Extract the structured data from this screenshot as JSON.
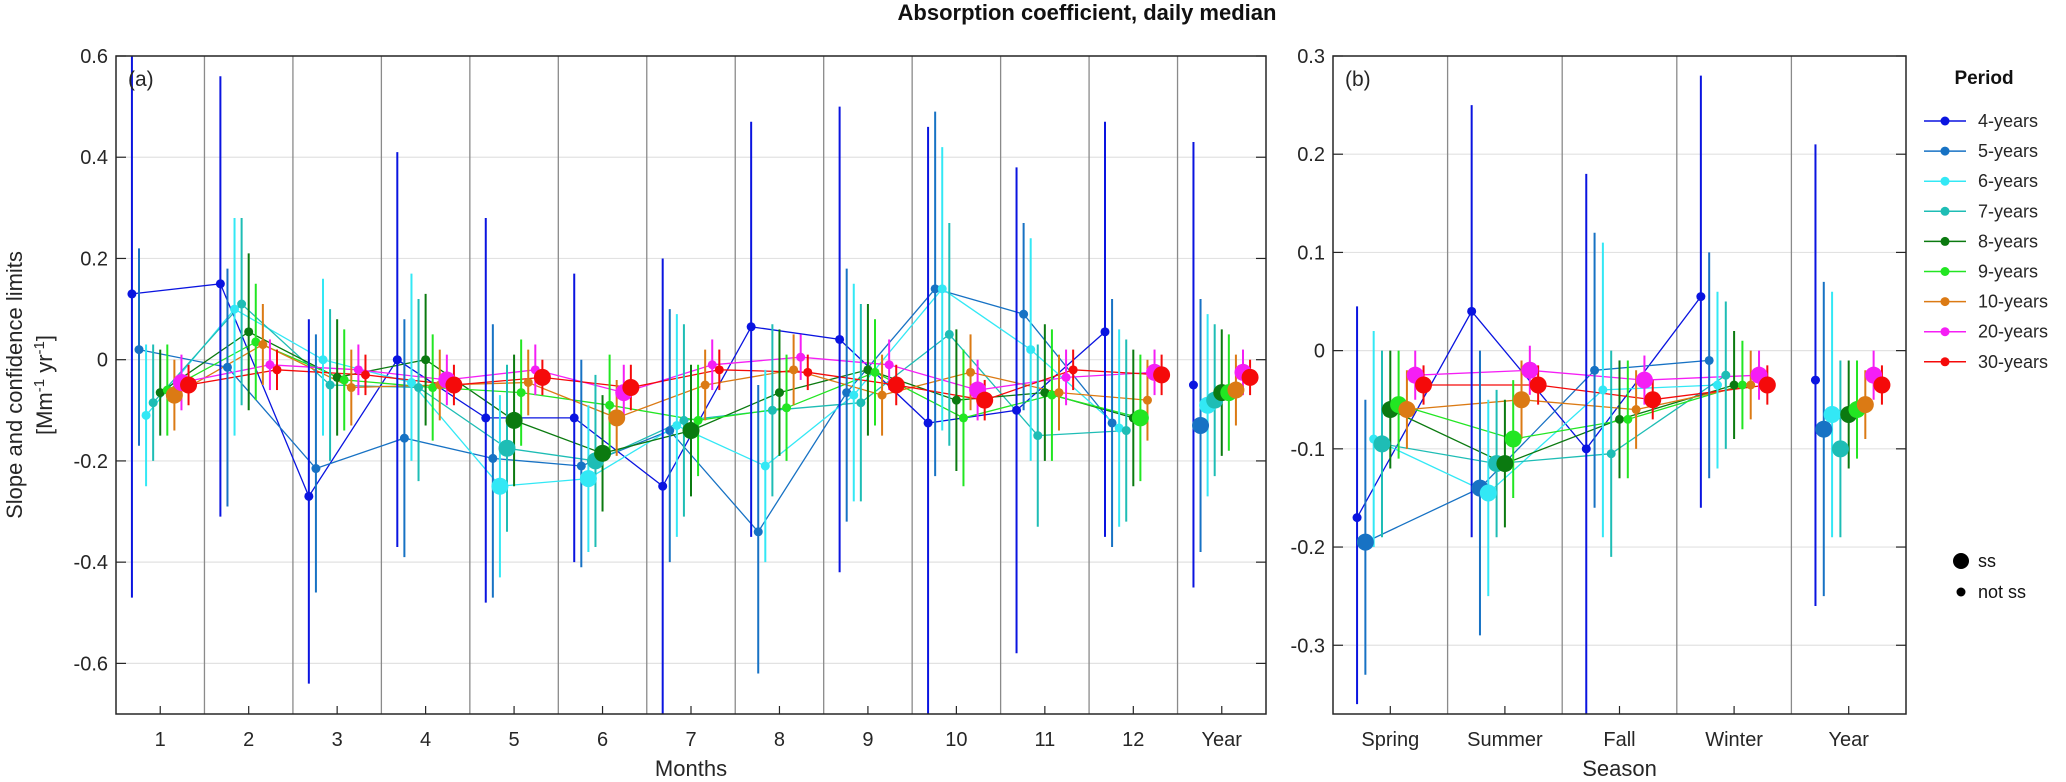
{
  "figure": {
    "title": "Absorption coefficient, daily median"
  },
  "legend": {
    "title": "Period",
    "size_ss_label": "ss",
    "size_not_ss_label": "not ss"
  },
  "chart_data": [
    {
      "id": "a",
      "panel_label": "(a)",
      "type": "scatter",
      "xlabel": "Months",
      "ylabel_main": "Slope and confidence limits",
      "ylabel_units": "[Mm-1 yr-1]",
      "ylim": [
        -0.7,
        0.6
      ],
      "yticks": [
        -0.6,
        -0.4,
        -0.2,
        0,
        0.2,
        0.4,
        0.6
      ],
      "ytick_labels": [
        "-0.6",
        "-0.4",
        "-0.2",
        "0",
        "0.2",
        "0.4",
        "0.6"
      ],
      "categories": [
        "1",
        "2",
        "3",
        "4",
        "5",
        "6",
        "7",
        "8",
        "9",
        "10",
        "11",
        "12",
        "Year"
      ],
      "grid": "horizontal",
      "series": [
        {
          "name": "4-years",
          "color": "#0a14e0",
          "y": [
            0.13,
            0.15,
            -0.27,
            0.0,
            -0.115,
            -0.115,
            -0.25,
            0.065,
            0.04,
            -0.125,
            -0.1,
            0.055,
            -0.05
          ],
          "lo": [
            -0.47,
            -0.31,
            -0.64,
            -0.37,
            -0.48,
            -0.4,
            -0.7,
            -0.35,
            -0.42,
            -0.7,
            -0.58,
            -0.35,
            -0.45
          ],
          "hi": [
            0.6,
            0.56,
            0.08,
            0.41,
            0.28,
            0.17,
            0.2,
            0.47,
            0.5,
            0.46,
            0.38,
            0.47,
            0.43
          ],
          "ss": [
            false,
            false,
            false,
            false,
            false,
            false,
            false,
            false,
            false,
            false,
            false,
            false,
            false
          ]
        },
        {
          "name": "5-years",
          "color": "#1772c4",
          "y": [
            0.02,
            -0.015,
            -0.215,
            -0.155,
            -0.195,
            -0.21,
            -0.14,
            -0.34,
            -0.065,
            0.14,
            0.09,
            -0.125,
            -0.13
          ],
          "lo": [
            -0.17,
            -0.29,
            -0.46,
            -0.39,
            -0.47,
            -0.41,
            -0.4,
            -0.62,
            -0.32,
            -0.23,
            -0.1,
            -0.37,
            -0.38
          ],
          "hi": [
            0.22,
            0.18,
            0.05,
            0.08,
            0.07,
            0.0,
            0.1,
            -0.05,
            0.18,
            0.49,
            0.27,
            0.12,
            0.12
          ],
          "ss": [
            false,
            false,
            false,
            false,
            false,
            false,
            false,
            false,
            false,
            false,
            false,
            false,
            true
          ]
        },
        {
          "name": "6-years",
          "color": "#33e8f5",
          "y": [
            -0.11,
            0.1,
            0.0,
            -0.045,
            -0.25,
            -0.235,
            -0.13,
            -0.21,
            -0.07,
            0.14,
            0.02,
            -0.135,
            -0.09
          ],
          "lo": [
            -0.25,
            -0.15,
            -0.15,
            -0.2,
            -0.43,
            -0.38,
            -0.35,
            -0.4,
            -0.28,
            -0.14,
            -0.2,
            -0.33,
            -0.27
          ],
          "hi": [
            0.03,
            0.28,
            0.16,
            0.17,
            -0.07,
            -0.09,
            0.09,
            -0.02,
            0.15,
            0.42,
            0.24,
            0.06,
            0.09
          ],
          "ss": [
            false,
            false,
            false,
            false,
            true,
            true,
            false,
            false,
            false,
            false,
            false,
            false,
            true
          ]
        },
        {
          "name": "7-years",
          "color": "#1ebdb5",
          "y": [
            -0.085,
            0.11,
            -0.05,
            -0.055,
            -0.175,
            -0.2,
            -0.12,
            -0.1,
            -0.085,
            0.05,
            -0.15,
            -0.14,
            -0.08
          ],
          "lo": [
            -0.2,
            -0.09,
            -0.2,
            -0.24,
            -0.34,
            -0.37,
            -0.31,
            -0.27,
            -0.28,
            -0.17,
            -0.33,
            -0.32,
            -0.23
          ],
          "hi": [
            0.03,
            0.28,
            0.1,
            0.12,
            -0.01,
            -0.03,
            0.07,
            0.07,
            0.11,
            0.27,
            0.03,
            0.04,
            0.07
          ],
          "ss": [
            false,
            false,
            false,
            false,
            true,
            true,
            false,
            false,
            false,
            false,
            false,
            false,
            true
          ]
        },
        {
          "name": "8-years",
          "color": "#0b7a10",
          "y": [
            -0.065,
            0.055,
            -0.035,
            0.0,
            -0.12,
            -0.185,
            -0.14,
            -0.065,
            -0.02,
            -0.08,
            -0.065,
            -0.115,
            -0.065
          ],
          "lo": [
            -0.15,
            -0.1,
            -0.15,
            -0.13,
            -0.25,
            -0.3,
            -0.27,
            -0.19,
            -0.15,
            -0.22,
            -0.2,
            -0.25,
            -0.19
          ],
          "hi": [
            0.02,
            0.21,
            0.08,
            0.13,
            0.01,
            -0.07,
            -0.01,
            0.06,
            0.11,
            0.06,
            0.07,
            0.02,
            0.06
          ],
          "ss": [
            false,
            false,
            false,
            false,
            true,
            true,
            true,
            false,
            false,
            false,
            false,
            false,
            true
          ]
        },
        {
          "name": "9-years",
          "color": "#22e622",
          "y": [
            -0.06,
            0.035,
            -0.04,
            -0.055,
            -0.065,
            -0.09,
            -0.12,
            -0.095,
            -0.025,
            -0.115,
            -0.07,
            -0.115,
            -0.065
          ],
          "lo": [
            -0.15,
            -0.08,
            -0.14,
            -0.16,
            -0.17,
            -0.19,
            -0.23,
            -0.2,
            -0.13,
            -0.25,
            -0.2,
            -0.24,
            -0.18
          ],
          "hi": [
            0.03,
            0.15,
            0.06,
            0.05,
            0.04,
            0.01,
            -0.01,
            0.01,
            0.08,
            0.02,
            0.06,
            0.01,
            0.05
          ],
          "ss": [
            false,
            false,
            false,
            false,
            false,
            false,
            false,
            false,
            false,
            false,
            false,
            true,
            true
          ]
        },
        {
          "name": "10-years",
          "color": "#db7a14",
          "y": [
            -0.07,
            0.03,
            -0.055,
            -0.05,
            -0.045,
            -0.115,
            -0.05,
            -0.02,
            -0.07,
            -0.025,
            -0.065,
            -0.08,
            -0.06
          ],
          "lo": [
            -0.14,
            -0.05,
            -0.13,
            -0.12,
            -0.11,
            -0.19,
            -0.12,
            -0.09,
            -0.15,
            -0.1,
            -0.14,
            -0.16,
            -0.13
          ],
          "hi": [
            0.0,
            0.11,
            0.02,
            0.02,
            0.02,
            -0.04,
            0.02,
            0.05,
            0.01,
            0.05,
            0.01,
            0.0,
            0.01
          ],
          "ss": [
            true,
            false,
            false,
            false,
            false,
            true,
            false,
            false,
            false,
            false,
            false,
            false,
            true
          ]
        },
        {
          "name": "20-years",
          "color": "#f51ef5",
          "y": [
            -0.045,
            -0.01,
            -0.02,
            -0.04,
            -0.02,
            -0.065,
            -0.01,
            0.005,
            -0.01,
            -0.06,
            -0.035,
            -0.025,
            -0.025
          ],
          "lo": [
            -0.1,
            -0.06,
            -0.07,
            -0.09,
            -0.07,
            -0.12,
            -0.06,
            -0.04,
            -0.06,
            -0.12,
            -0.09,
            -0.07,
            -0.07
          ],
          "hi": [
            0.01,
            0.04,
            0.03,
            0.01,
            0.03,
            -0.01,
            0.04,
            0.05,
            0.04,
            0.0,
            0.02,
            0.02,
            0.02
          ],
          "ss": [
            true,
            false,
            false,
            true,
            false,
            true,
            false,
            false,
            false,
            true,
            false,
            true,
            true
          ]
        },
        {
          "name": "30-years",
          "color": "#f50a0a",
          "y": [
            -0.05,
            -0.02,
            -0.03,
            -0.05,
            -0.035,
            -0.055,
            -0.02,
            -0.025,
            -0.05,
            -0.08,
            -0.02,
            -0.03,
            -0.035
          ],
          "lo": [
            -0.09,
            -0.06,
            -0.07,
            -0.09,
            -0.07,
            -0.1,
            -0.06,
            -0.06,
            -0.09,
            -0.12,
            -0.06,
            -0.07,
            -0.07
          ],
          "hi": [
            -0.01,
            0.02,
            0.01,
            -0.01,
            0.0,
            -0.01,
            0.02,
            0.01,
            -0.01,
            -0.04,
            0.02,
            0.01,
            0.0
          ],
          "ss": [
            true,
            false,
            false,
            true,
            true,
            true,
            false,
            false,
            true,
            true,
            false,
            true,
            true
          ]
        }
      ]
    },
    {
      "id": "b",
      "panel_label": "(b)",
      "type": "scatter",
      "xlabel": "Season",
      "ylim": [
        -0.37,
        0.3
      ],
      "yticks": [
        -0.3,
        -0.2,
        -0.1,
        0,
        0.1,
        0.2,
        0.3
      ],
      "ytick_labels": [
        "-0.3",
        "-0.2",
        "-0.1",
        "0",
        "0.1",
        "0.2",
        "0.3"
      ],
      "categories": [
        "Spring",
        "Summer",
        "Fall",
        "Winter",
        "Year"
      ],
      "grid": "horizontal",
      "series": [
        {
          "name": "4-years",
          "color": "#0a14e0",
          "y": [
            -0.17,
            0.04,
            -0.1,
            0.055,
            -0.03
          ],
          "lo": [
            -0.36,
            -0.19,
            -0.37,
            -0.16,
            -0.26
          ],
          "hi": [
            0.045,
            0.25,
            0.18,
            0.28,
            0.21
          ],
          "ss": [
            false,
            false,
            false,
            false,
            false
          ]
        },
        {
          "name": "5-years",
          "color": "#1772c4",
          "y": [
            -0.195,
            -0.14,
            -0.02,
            -0.01,
            -0.08
          ],
          "lo": [
            -0.33,
            -0.29,
            -0.16,
            -0.13,
            -0.25
          ],
          "hi": [
            -0.05,
            0.0,
            0.12,
            0.1,
            0.07
          ],
          "ss": [
            true,
            true,
            false,
            false,
            true
          ]
        },
        {
          "name": "6-years",
          "color": "#33e8f5",
          "y": [
            -0.09,
            -0.145,
            -0.04,
            -0.035,
            -0.065
          ],
          "lo": [
            -0.2,
            -0.25,
            -0.19,
            -0.12,
            -0.19
          ],
          "hi": [
            0.02,
            -0.05,
            0.11,
            0.06,
            0.06
          ],
          "ss": [
            false,
            true,
            false,
            false,
            true
          ]
        },
        {
          "name": "7-years",
          "color": "#1ebdb5",
          "y": [
            -0.095,
            -0.115,
            -0.105,
            -0.025,
            -0.1
          ],
          "lo": [
            -0.19,
            -0.19,
            -0.21,
            -0.1,
            -0.19
          ],
          "hi": [
            0.0,
            -0.04,
            0.0,
            0.05,
            -0.01
          ],
          "ss": [
            true,
            true,
            false,
            false,
            true
          ]
        },
        {
          "name": "8-years",
          "color": "#0b7a10",
          "y": [
            -0.06,
            -0.115,
            -0.07,
            -0.035,
            -0.065
          ],
          "lo": [
            -0.12,
            -0.18,
            -0.13,
            -0.09,
            -0.12
          ],
          "hi": [
            0.0,
            -0.05,
            -0.01,
            0.02,
            -0.01
          ],
          "ss": [
            true,
            true,
            false,
            false,
            true
          ]
        },
        {
          "name": "9-years",
          "color": "#22e622",
          "y": [
            -0.055,
            -0.09,
            -0.07,
            -0.035,
            -0.06
          ],
          "lo": [
            -0.11,
            -0.15,
            -0.13,
            -0.08,
            -0.11
          ],
          "hi": [
            0.0,
            -0.03,
            -0.01,
            0.01,
            -0.01
          ],
          "ss": [
            true,
            true,
            false,
            false,
            true
          ]
        },
        {
          "name": "10-years",
          "color": "#db7a14",
          "y": [
            -0.06,
            -0.05,
            -0.06,
            -0.035,
            -0.055
          ],
          "lo": [
            -0.1,
            -0.09,
            -0.1,
            -0.07,
            -0.09
          ],
          "hi": [
            -0.02,
            -0.01,
            -0.02,
            0.0,
            -0.02
          ],
          "ss": [
            true,
            true,
            false,
            false,
            true
          ]
        },
        {
          "name": "20-years",
          "color": "#f51ef5",
          "y": [
            -0.025,
            -0.02,
            -0.03,
            -0.025,
            -0.025
          ],
          "lo": [
            -0.05,
            -0.045,
            -0.055,
            -0.05,
            -0.05
          ],
          "hi": [
            0.0,
            0.005,
            -0.005,
            0.0,
            0.0
          ],
          "ss": [
            true,
            true,
            true,
            true,
            true
          ]
        },
        {
          "name": "30-years",
          "color": "#f50a0a",
          "y": [
            -0.035,
            -0.035,
            -0.05,
            -0.035,
            -0.035
          ],
          "lo": [
            -0.055,
            -0.055,
            -0.07,
            -0.055,
            -0.055
          ],
          "hi": [
            -0.015,
            -0.015,
            -0.03,
            -0.015,
            -0.015
          ],
          "ss": [
            true,
            true,
            true,
            true,
            true
          ]
        }
      ]
    }
  ]
}
